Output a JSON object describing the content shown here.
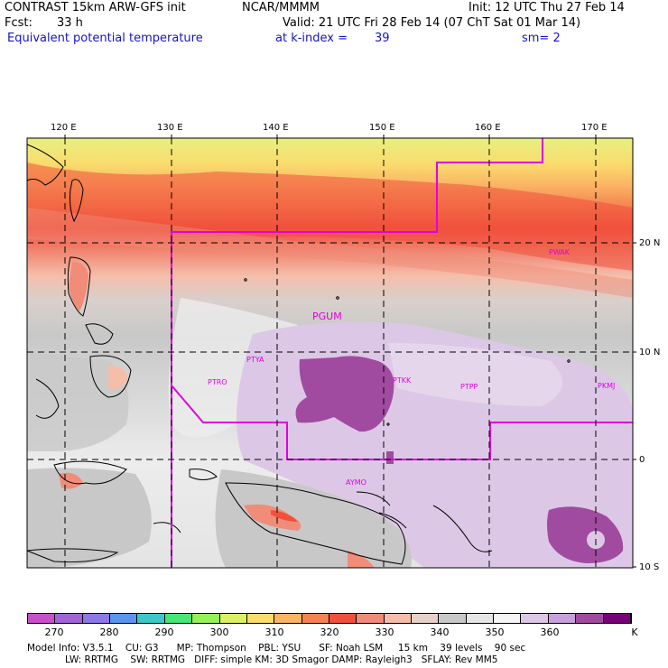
{
  "header": {
    "model_title": "CONTRAST 15km ARW-GFS init",
    "institution": "NCAR/MMMM",
    "init": "Init: 12 UTC Thu 27 Feb 14",
    "fcst_label": "Fcst:",
    "fcst_value": "33 h",
    "valid": "Valid: 21 UTC Fri 28 Feb 14 (07 ChT Sat 01 Mar 14)",
    "field_name": "Equivalent potential temperature",
    "level": "at k-index =",
    "level_value": "39",
    "smoothing": "sm= 2"
  },
  "map": {
    "lon_labels": [
      "120 E",
      "130 E",
      "140 E",
      "150 E",
      "160 E",
      "170 E"
    ],
    "lat_labels": [
      "20 N",
      "10 N",
      "0",
      "10 S"
    ],
    "stations": [
      {
        "code": "PGUM"
      },
      {
        "code": "PTYA"
      },
      {
        "code": "PTRO"
      },
      {
        "code": "PTKK"
      },
      {
        "code": "PTPP"
      },
      {
        "code": "PKMJ"
      },
      {
        "code": "PWAK"
      },
      {
        "code": "AYMO"
      }
    ],
    "station_color": "#e000e0",
    "boundary_color": "#e000e0"
  },
  "colorbar": {
    "unit": "K",
    "labels": [
      "270",
      "280",
      "290",
      "300",
      "310",
      "320",
      "330",
      "340",
      "350",
      "360"
    ],
    "colors": [
      "#c850c8",
      "#a064d8",
      "#8c78e6",
      "#5a96f0",
      "#3cc8c8",
      "#46e678",
      "#96f05a",
      "#dcf064",
      "#fadc6e",
      "#fab464",
      "#f58250",
      "#f0503c",
      "#f08c78",
      "#f5beaa",
      "#e6d2c8",
      "#c8c8c8",
      "#e6e6e6",
      "#f5f5f5",
      "#dcc8e6",
      "#c8a0dc",
      "#a04ba0",
      "#780078"
    ]
  },
  "footer": {
    "line1": "Model Info: V3.5.1    CU: G3      MP: Thompson    PBL: YSU      SF: Noah LSM     15 km    39 levels    90 sec",
    "line2": "LW: RRTMG    SW: RRTMG   DIFF: simple KM: 3D Smagor DAMP: Rayleigh3   SFLAY: Rev MM5"
  }
}
